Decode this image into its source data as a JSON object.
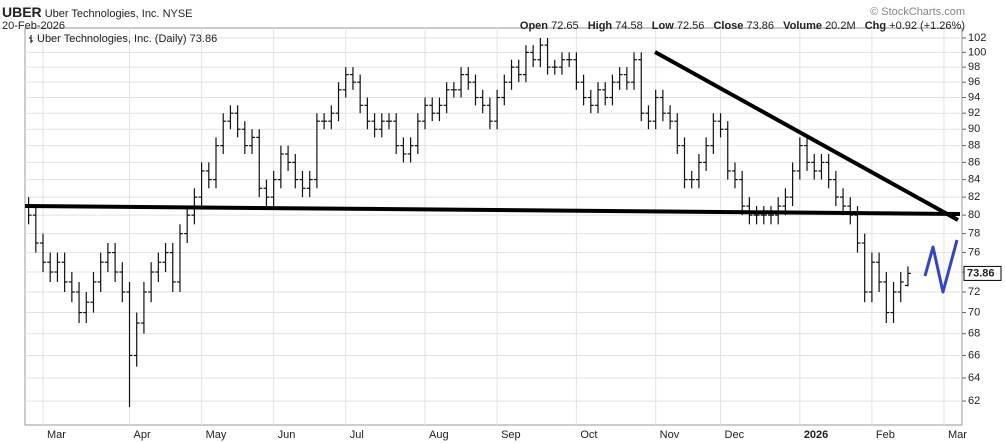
{
  "header": {
    "symbol": "UBER",
    "company": "Uber Technologies, Inc.",
    "exchange": "NYSE",
    "date": "20-Feb-2026",
    "labels": [
      "Open",
      "High",
      "Low",
      "Close",
      "Volume",
      "Chg"
    ],
    "volume": "20.2M",
    "change": "+0.92 (+1.26%)",
    "source": "© StockCharts.com"
  },
  "chart_data": {
    "type": "ohlc",
    "log_scale": true,
    "grid": true,
    "ylim": [
      60,
      103.4
    ],
    "yticks": [
      62,
      64,
      66,
      68,
      70,
      72,
      74,
      76,
      78,
      80,
      82,
      84,
      86,
      88,
      90,
      92,
      94,
      96,
      98,
      100,
      102
    ],
    "categories": [
      null,
      null,
      "Mar",
      null,
      null,
      null,
      null,
      null,
      null,
      null,
      null,
      null,
      null,
      null,
      "Apr",
      null,
      null,
      null,
      null,
      null,
      null,
      null,
      null,
      null,
      "May",
      null,
      null,
      null,
      null,
      null,
      null,
      null,
      null,
      null,
      "Jun",
      null,
      null,
      null,
      null,
      null,
      null,
      null,
      null,
      null,
      "Jul",
      null,
      null,
      null,
      null,
      null,
      null,
      null,
      null,
      null,
      null,
      "Aug",
      null,
      null,
      null,
      null,
      null,
      null,
      null,
      null,
      null,
      "Sep",
      null,
      null,
      null,
      null,
      null,
      null,
      null,
      null,
      null,
      null,
      "Oct",
      null,
      null,
      null,
      null,
      null,
      null,
      null,
      null,
      null,
      null,
      "Nov",
      null,
      null,
      null,
      null,
      null,
      null,
      null,
      null,
      "Dec",
      null,
      null,
      null,
      null,
      null,
      null,
      null,
      null,
      null,
      null,
      "2026",
      null,
      null,
      null,
      null,
      null,
      null,
      null,
      null,
      null,
      "Feb",
      null,
      null,
      null,
      null,
      null,
      null,
      null,
      null,
      null,
      "Mar",
      null,
      null
    ],
    "series": [
      {
        "name": "Uber Technologies, Inc. (Daily)",
        "color": "#111111",
        "open": [
          81,
          80,
          77,
          75,
          74,
          75,
          73,
          72,
          70,
          71,
          73,
          75,
          76,
          74,
          72,
          66,
          69,
          72,
          74,
          75,
          76,
          73,
          78,
          80,
          82,
          85,
          84,
          88,
          91,
          92,
          90,
          88,
          89,
          83,
          82,
          84,
          87,
          86,
          84,
          83,
          84,
          91,
          91,
          92,
          95,
          97,
          96,
          93,
          91,
          90,
          91,
          91,
          88,
          87,
          88,
          91,
          93,
          92,
          93,
          95,
          95,
          97,
          96,
          94,
          93,
          91,
          94,
          96,
          98,
          97,
          100,
          99,
          101,
          98,
          98,
          99,
          99,
          96,
          94,
          93,
          95,
          94,
          96,
          97,
          96,
          99,
          92,
          91,
          94,
          92,
          91,
          88,
          84,
          84,
          86,
          88,
          91,
          90,
          85,
          84,
          81,
          80,
          80,
          80,
          80,
          81,
          82,
          85,
          88,
          86,
          85,
          86,
          84,
          82,
          81,
          80,
          77,
          72,
          75,
          73,
          70,
          72,
          72.65,
          null,
          null,
          null,
          null,
          null,
          null,
          null
        ],
        "high": [
          82,
          81,
          78,
          76,
          76,
          76,
          74,
          73,
          72,
          74,
          76,
          77,
          77,
          75,
          73,
          70,
          73,
          75,
          76,
          77,
          77,
          79,
          81,
          83,
          86,
          86,
          89,
          92,
          93,
          93,
          91,
          90,
          90,
          84,
          85,
          88,
          88,
          87,
          85,
          85,
          92,
          92,
          93,
          96,
          98,
          98,
          97,
          94,
          92,
          92,
          92,
          92,
          89,
          89,
          92,
          94,
          94,
          94,
          96,
          96,
          98,
          98,
          97,
          95,
          94,
          95,
          97,
          99,
          99,
          101,
          101,
          102,
          102,
          99,
          100,
          100,
          100,
          97,
          95,
          96,
          96,
          97,
          98,
          98,
          100,
          100,
          93,
          95,
          95,
          93,
          92,
          89,
          85,
          87,
          89,
          92,
          92,
          91,
          86,
          85,
          82,
          81,
          81,
          81,
          82,
          83,
          86,
          89,
          89,
          87,
          87,
          87,
          85,
          83,
          82,
          81,
          78,
          76,
          76,
          74,
          73,
          74,
          74.58,
          null,
          null,
          null,
          null,
          null,
          null,
          null
        ],
        "low": [
          79,
          76,
          74,
          73,
          73,
          72,
          71,
          69,
          69,
          70,
          72,
          74,
          73,
          71,
          61.5,
          65,
          68,
          71,
          73,
          74,
          72,
          72,
          77,
          79,
          81,
          83,
          83,
          87,
          90,
          89,
          87,
          87,
          82,
          81,
          81,
          83,
          85,
          83,
          82,
          82,
          83,
          90,
          90,
          91,
          94,
          95,
          92,
          90,
          89,
          89,
          90,
          87,
          86,
          86,
          87,
          90,
          91,
          91,
          92,
          94,
          94,
          95,
          93,
          92,
          90,
          90,
          93,
          95,
          96,
          96,
          98,
          98,
          97,
          97,
          97,
          98,
          95,
          93,
          92,
          92,
          93,
          93,
          95,
          95,
          95,
          91,
          90,
          90,
          91,
          90,
          87,
          83,
          83,
          83,
          85,
          87,
          89,
          84,
          83,
          80,
          79,
          79,
          79,
          79,
          79,
          80,
          81,
          84,
          85,
          84,
          84,
          83,
          81,
          80,
          79,
          76,
          71,
          71,
          72,
          69,
          69,
          71,
          72.56,
          null,
          null,
          null,
          null,
          null,
          null,
          null
        ],
        "close": [
          80,
          77,
          75,
          74,
          75,
          73,
          72,
          70,
          71,
          73,
          75,
          76,
          74,
          72,
          66,
          69,
          72,
          74,
          75,
          76,
          73,
          78,
          80,
          82,
          85,
          84,
          88,
          91,
          92,
          90,
          88,
          89,
          83,
          82,
          84,
          87,
          86,
          84,
          83,
          84,
          91,
          91,
          92,
          95,
          97,
          96,
          93,
          91,
          90,
          91,
          91,
          88,
          87,
          88,
          91,
          93,
          92,
          93,
          95,
          95,
          97,
          96,
          94,
          93,
          91,
          94,
          96,
          98,
          97,
          100,
          99,
          101,
          98,
          98,
          99,
          99,
          96,
          94,
          93,
          95,
          94,
          96,
          97,
          96,
          99,
          92,
          91,
          94,
          92,
          91,
          88,
          84,
          84,
          86,
          88,
          91,
          90,
          85,
          84,
          81,
          80,
          80,
          80,
          80,
          81,
          82,
          85,
          88,
          86,
          85,
          86,
          84,
          82,
          81,
          80,
          77,
          72,
          75,
          73,
          70,
          72,
          73,
          73.86,
          null,
          null,
          null,
          null,
          null,
          null,
          null
        ]
      }
    ]
  }
}
